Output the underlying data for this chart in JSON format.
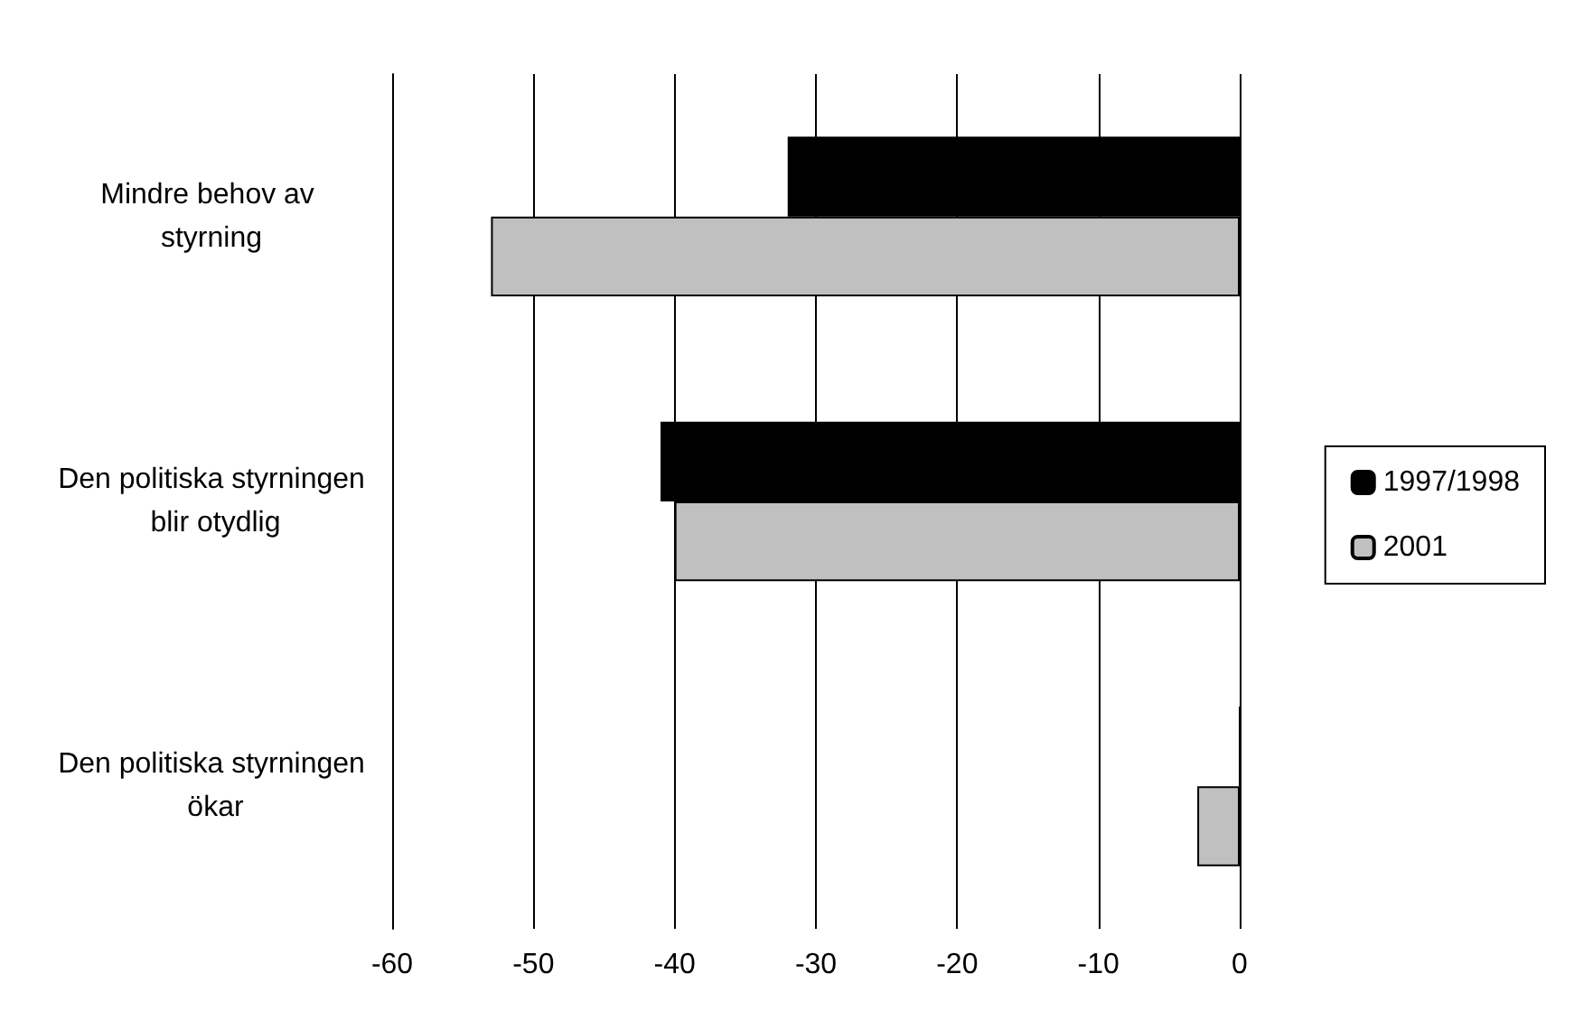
{
  "chart_data": {
    "type": "bar",
    "orientation": "horizontal",
    "categories": [
      "Mindre behov av styrning",
      "Den politiska styrningen blir otydlig",
      "Den politiska styrningen ökar"
    ],
    "series": [
      {
        "name": "1997/1998",
        "color": "#000000",
        "values": [
          -32,
          -41,
          0
        ]
      },
      {
        "name": "2001",
        "color": "#c0c0c0",
        "values": [
          -53,
          -40,
          -3
        ]
      }
    ],
    "xlim": [
      -60,
      0
    ],
    "xticks": [
      -60,
      -50,
      -40,
      -30,
      -20,
      -10,
      0
    ],
    "grid": "x",
    "legend": "right"
  }
}
